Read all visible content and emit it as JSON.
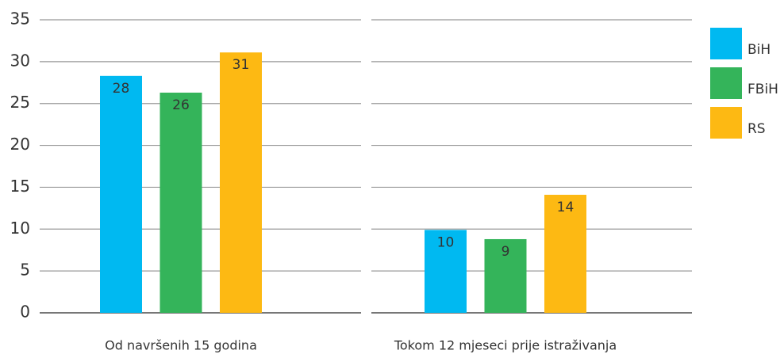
{
  "chart_data": {
    "type": "bar",
    "categories": [
      "Od navršenih 15 godina",
      "Tokom 12 mjeseci prije istraživanja"
    ],
    "series": [
      {
        "name": "BiH",
        "color": "#00b9f1",
        "values": [
          28.3,
          9.9
        ],
        "value_labels": [
          "28",
          "10"
        ]
      },
      {
        "name": "FBiH",
        "color": "#34b45a",
        "values": [
          26.3,
          8.8
        ],
        "value_labels": [
          "26",
          "9"
        ]
      },
      {
        "name": "RS",
        "color": "#fdb913",
        "values": [
          31.1,
          14.1
        ],
        "value_labels": [
          "31",
          "14"
        ]
      }
    ],
    "ylim": [
      0,
      35
    ],
    "yticks": [
      0,
      5,
      10,
      15,
      20,
      25,
      30,
      35
    ],
    "grid": true,
    "legend": "right"
  }
}
